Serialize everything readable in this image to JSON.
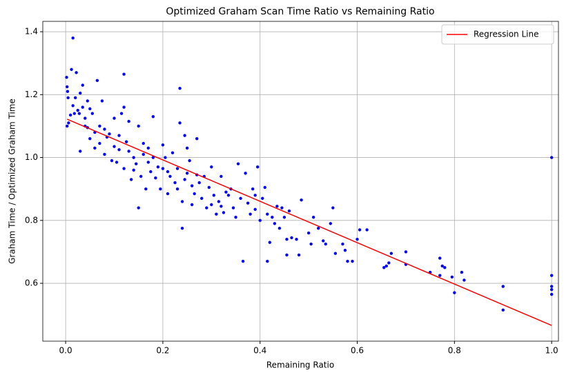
{
  "chart_data": {
    "type": "scatter",
    "title": "Optimized Graham Scan Time Ratio vs Remaining Ratio",
    "x_label": "Remaining Ratio",
    "y_label": "Graham Time / Optimized Graham Time",
    "xlim": [
      -0.047,
      1.014
    ],
    "ylim": [
      0.416,
      1.433
    ],
    "xticks": [
      {
        "value": 0,
        "label": "0.0"
      },
      0.2,
      0.4,
      0.6,
      0.8,
      {
        "value": 1,
        "label": "1.0"
      }
    ],
    "yticks": [
      0.6,
      0.8,
      {
        "value": 1,
        "label": "1.0"
      },
      1.2,
      1.4
    ],
    "grid": true,
    "legend": "upper right",
    "series": [
      {
        "type": "scatter",
        "color": "#0000ff",
        "x": [
          0.002,
          0.003,
          0.004,
          0.005,
          0.003,
          0.006,
          0.01,
          0.012,
          0.015,
          0.015,
          0.018,
          0.02,
          0.022,
          0.025,
          0.028,
          0.03,
          0.03,
          0.035,
          0.035,
          0.04,
          0.04,
          0.045,
          0.045,
          0.05,
          0.05,
          0.055,
          0.06,
          0.06,
          0.065,
          0.07,
          0.07,
          0.075,
          0.08,
          0.08,
          0.085,
          0.09,
          0.095,
          0.1,
          0.1,
          0.105,
          0.11,
          0.11,
          0.115,
          0.12,
          0.12,
          0.12,
          0.125,
          0.13,
          0.13,
          0.135,
          0.14,
          0.14,
          0.145,
          0.15,
          0.15,
          0.155,
          0.16,
          0.16,
          0.165,
          0.17,
          0.17,
          0.175,
          0.18,
          0.18,
          0.185,
          0.19,
          0.195,
          0.2,
          0.2,
          0.205,
          0.21,
          0.21,
          0.215,
          0.22,
          0.225,
          0.23,
          0.23,
          0.235,
          0.235,
          0.24,
          0.24,
          0.245,
          0.245,
          0.25,
          0.25,
          0.255,
          0.26,
          0.26,
          0.265,
          0.27,
          0.27,
          0.275,
          0.28,
          0.285,
          0.29,
          0.295,
          0.3,
          0.3,
          0.305,
          0.31,
          0.315,
          0.32,
          0.32,
          0.325,
          0.33,
          0.335,
          0.34,
          0.345,
          0.35,
          0.355,
          0.36,
          0.365,
          0.37,
          0.375,
          0.38,
          0.385,
          0.39,
          0.39,
          0.395,
          0.4,
          0.405,
          0.41,
          0.415,
          0.415,
          0.42,
          0.425,
          0.43,
          0.435,
          0.44,
          0.445,
          0.45,
          0.455,
          0.455,
          0.46,
          0.465,
          0.475,
          0.48,
          0.485,
          0.5,
          0.505,
          0.51,
          0.52,
          0.53,
          0.535,
          0.545,
          0.55,
          0.555,
          0.57,
          0.575,
          0.58,
          0.59,
          0.6,
          0.605,
          0.62,
          0.655,
          0.66,
          0.665,
          0.67,
          0.7,
          0.7,
          0.75,
          0.77,
          0.775,
          0.78,
          0.77,
          0.795,
          0.8,
          0.815,
          0.82,
          0.9,
          0.9,
          1.0,
          1.0,
          1.0,
          1.0,
          1.0
        ],
        "values": [
          1.255,
          1.225,
          1.21,
          1.19,
          1.1,
          1.11,
          1.135,
          1.28,
          1.38,
          1.165,
          1.14,
          1.19,
          1.27,
          1.15,
          1.14,
          1.02,
          1.205,
          1.23,
          1.16,
          1.125,
          1.1,
          1.18,
          1.095,
          1.155,
          1.06,
          1.14,
          1.08,
          1.03,
          1.245,
          1.1,
          1.045,
          1.18,
          1.09,
          1.01,
          1.065,
          1.075,
          0.99,
          1.035,
          1.125,
          0.985,
          1.07,
          1.025,
          1.14,
          1.265,
          1.16,
          0.965,
          1.05,
          1.02,
          1.115,
          0.93,
          0.96,
          1.0,
          0.98,
          0.84,
          1.1,
          0.94,
          1.01,
          1.045,
          0.9,
          0.985,
          1.03,
          0.955,
          1.13,
          1.0,
          0.935,
          0.97,
          0.9,
          0.965,
          1.04,
          1.0,
          0.885,
          0.955,
          0.94,
          1.015,
          0.92,
          0.965,
          0.9,
          1.22,
          1.11,
          0.86,
          0.775,
          1.07,
          0.93,
          1.03,
          0.95,
          0.99,
          0.85,
          0.91,
          0.885,
          1.06,
          0.945,
          0.92,
          0.87,
          0.94,
          0.84,
          0.905,
          0.97,
          0.85,
          0.88,
          0.82,
          0.86,
          0.94,
          0.845,
          0.825,
          0.89,
          0.88,
          0.9,
          0.84,
          0.81,
          0.98,
          0.87,
          0.67,
          0.95,
          0.855,
          0.82,
          0.9,
          0.88,
          0.835,
          0.97,
          0.8,
          0.87,
          0.905,
          0.82,
          0.67,
          0.73,
          0.81,
          0.79,
          0.845,
          0.775,
          0.84,
          0.81,
          0.74,
          0.69,
          0.83,
          0.745,
          0.74,
          0.69,
          0.865,
          0.76,
          0.725,
          0.81,
          0.775,
          0.735,
          0.725,
          0.79,
          0.84,
          0.695,
          0.725,
          0.705,
          0.67,
          0.67,
          0.74,
          0.77,
          0.77,
          0.65,
          0.655,
          0.665,
          0.695,
          0.7,
          0.66,
          0.635,
          0.68,
          0.655,
          0.65,
          0.625,
          0.62,
          0.57,
          0.635,
          0.61,
          0.59,
          0.515,
          1.0,
          0.625,
          0.59,
          0.58,
          0.565
        ]
      },
      {
        "type": "line",
        "name": "Regression Line",
        "color": "#ff0000",
        "x": [
          0.003,
          1.0
        ],
        "values": [
          1.122,
          0.466
        ]
      }
    ]
  }
}
